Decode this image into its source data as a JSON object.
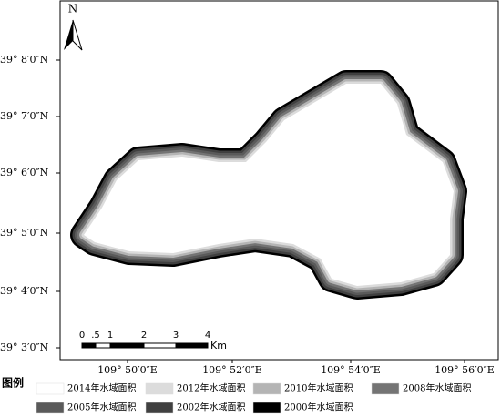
{
  "map": {
    "north": "N",
    "lat_labels": [
      "39° 8′0″N",
      "39° 7′0″N",
      "39° 6′0″N",
      "39° 5′0″N",
      "39° 4′0″N",
      "39° 3′0″N"
    ],
    "lon_labels": [
      "109° 50′0″E",
      "109° 52′0″E",
      "109° 54′0″E",
      "109° 56′0″E"
    ],
    "scale_labels": [
      "0",
      ".5",
      "1",
      "2",
      "3",
      "4"
    ],
    "scale_unit": "Km",
    "legend": {
      "title": "图例",
      "items": [
        {
          "label": "2014年水域面积",
          "color": "#ffffff"
        },
        {
          "label": "2012年水域面积",
          "color": "#dcdcdc"
        },
        {
          "label": "2010年水域面积",
          "color": "#b4b4b4"
        },
        {
          "label": "2008年水域面积",
          "color": "#747474"
        },
        {
          "label": "2005年水域面积",
          "color": "#5a5a5a"
        },
        {
          "label": "2002年水域面积",
          "color": "#404040"
        },
        {
          "label": "2000年水域面积",
          "color": "#000000"
        }
      ]
    }
  }
}
